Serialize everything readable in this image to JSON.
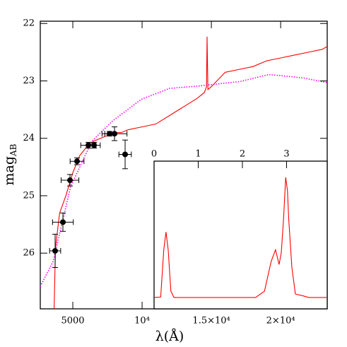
{
  "chart_data": [
    {
      "type": "line",
      "x_label": "λ(Å)",
      "y_label": "mag",
      "y_label_sub": "AB",
      "xlim": [
        2653,
        23360
      ],
      "ylim": [
        21.96,
        26.97
      ],
      "invert_y": true,
      "xticks": [
        5000,
        {
          "value": 10000,
          "label": "10⁴"
        },
        {
          "value": 15000,
          "label": "1.5×10⁴"
        },
        {
          "value": 20000,
          "label": "2×10⁴"
        }
      ],
      "yticks": [
        22,
        23,
        24,
        25,
        26
      ],
      "series": [
        {
          "type": "line",
          "color": "#ff0000",
          "x": [
            3650,
            3750,
            4050,
            4500,
            5000,
            5500,
            6000,
            6500,
            7000,
            7500,
            8000,
            8500,
            9000,
            10000,
            11000,
            12000,
            13000,
            14000,
            14500,
            14650,
            14690,
            14750,
            15000,
            16000,
            17000,
            18000,
            19000,
            20000,
            21000,
            22000,
            23000,
            23360
          ],
          "y": [
            26.97,
            25.9,
            25.3,
            25.0,
            24.6,
            24.3,
            24.15,
            24.05,
            24.0,
            23.95,
            23.9,
            23.9,
            23.85,
            23.8,
            23.75,
            23.6,
            23.45,
            23.3,
            23.2,
            23.1,
            22.23,
            23.15,
            23.1,
            22.85,
            22.8,
            22.75,
            22.65,
            22.6,
            22.55,
            22.5,
            22.45,
            22.4
          ]
        },
        {
          "type": "line",
          "color": "#ff00ff",
          "dash": "dotted",
          "x": [
            2653,
            3571,
            4846,
            6376,
            7906,
            9946,
            11986,
            14026,
            17086,
            19126,
            20146,
            21676,
            23359
          ],
          "y": [
            26.58,
            26.15,
            24.84,
            24.05,
            23.69,
            23.32,
            23.13,
            23.09,
            23.01,
            22.89,
            22.91,
            22.95,
            23.03
          ]
        },
        {
          "type": "errorbar",
          "color": "#000000",
          "x": [
            3724,
            4286,
            4796,
            5306,
            6122,
            6530,
            7653,
            8010,
            8775
          ],
          "y": [
            25.96,
            25.46,
            24.73,
            24.4,
            24.12,
            24.12,
            23.92,
            23.92,
            24.28
          ],
          "xerr": [
            400,
            750,
            640,
            500,
            550,
            450,
            350,
            900,
            450
          ],
          "yerr": [
            0.29,
            0.16,
            0.1,
            0.06,
            0.05,
            0.05,
            0.04,
            0.12,
            0.25
          ]
        }
      ]
    },
    {
      "type": "line",
      "xlim": [
        0,
        3.92
      ],
      "ylim": [
        0,
        1
      ],
      "xticks": [
        0,
        1,
        2,
        3
      ],
      "series": [
        {
          "type": "line",
          "color": "#ff0000",
          "x": [
            0,
            0.15,
            0.22,
            0.27,
            0.32,
            0.38,
            0.45,
            2.3,
            2.5,
            2.65,
            2.75,
            2.83,
            2.88,
            2.93,
            2.98,
            3.02,
            3.05,
            3.12,
            3.2,
            3.35,
            3.5,
            3.92
          ],
          "y": [
            0.077,
            0.08,
            0.4,
            0.52,
            0.4,
            0.12,
            0.077,
            0.077,
            0.12,
            0.32,
            0.4,
            0.3,
            0.38,
            0.6,
            0.89,
            0.8,
            0.6,
            0.28,
            0.1,
            0.09,
            0.077,
            0.077
          ]
        }
      ]
    }
  ]
}
